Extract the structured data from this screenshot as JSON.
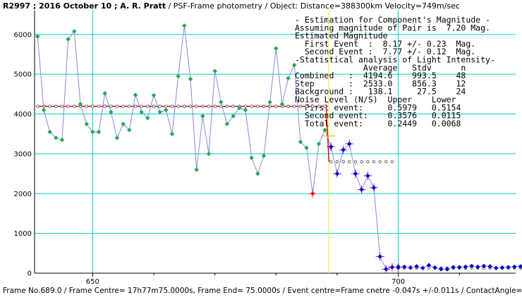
{
  "header": {
    "id": "R2997",
    "rest": " ; 2016 October 10 ; A. R. Pratt",
    "subtitle": " / PSF-Frame photometry /  Object: Distance=388300km Velocity=749m/sec"
  },
  "footer": "Frame No.689.0 / Frame Centre= 17h77m75.0000s,  Frame End= 75.0000s / Event centre=Frame cnetre -0.047s +/-0.011s / ContactAngle=0.0deg",
  "stats": {
    "lines": [
      "- Estimation for Component's Magnitude -",
      "Assuming magnitude of Pair is  7.20 Mag.",
      "Estimated Magnitude",
      "  First Event  :  8.17 +/- 0.23  Mag.",
      "  Second Event :  7.77 +/- 0.12  Mag.",
      "-Statistical analysis of Light Intensity-",
      "              Average   Stdv      n",
      "Combined   :  4194.6    993.5    48",
      "Step       :  2533.0    856.3    12",
      "Background :   138.1     27.5    24",
      "Noise Level (N/S)  Upper    Lower",
      "  First event:     0.5979   0.5154",
      "  Second event:    0.3576   0.0115",
      "  Total event:     0.2449   0.0068"
    ]
  },
  "colors": {
    "grid": "#00cccc",
    "event_line": "#ffee44",
    "data_line": "#8888dd",
    "green_marker": "#22aa55",
    "blue_marker": "#0000cc",
    "model_line": "#cc0000",
    "error_marker": "#ff0000"
  },
  "chart_data": {
    "type": "scatter",
    "xlim": [
      640.5,
      719.2
    ],
    "ylim": [
      0,
      6600
    ],
    "x_ticks": [
      650,
      700
    ],
    "y_ticks": [
      0,
      1000,
      2000,
      3000,
      4000,
      5000,
      6000
    ],
    "grid": true,
    "event_frame": 688.6,
    "first_frame": 641,
    "observed": [
      5950,
      4100,
      3550,
      3400,
      3350,
      5880,
      6080,
      4250,
      3750,
      3550,
      3550,
      4520,
      4050,
      3400,
      3750,
      3600,
      4480,
      4050,
      3900,
      4470,
      4050,
      4100,
      3500,
      4950,
      6220,
      4880,
      2600,
      3950,
      3000,
      5080,
      4300,
      3750,
      3950,
      4150,
      4100,
      2900,
      2500,
      2950,
      4300,
      5650,
      4250,
      4900,
      5230,
      3300,
      3150,
      2000,
      3250,
      3600,
      3180,
      2500,
      3100,
      3250,
      2500,
      2100,
      2450,
      2150,
      420,
      100,
      150,
      150,
      160,
      140,
      170,
      130,
      200,
      140,
      100,
      100,
      150,
      150,
      160,
      180,
      160,
      180,
      170,
      130,
      140,
      150,
      160,
      170,
      190,
      170,
      160,
      150,
      130
    ],
    "model": {
      "levels": [
        4194.6,
        2800,
        130
      ],
      "steps": [
        688.2,
        700.0
      ]
    }
  }
}
